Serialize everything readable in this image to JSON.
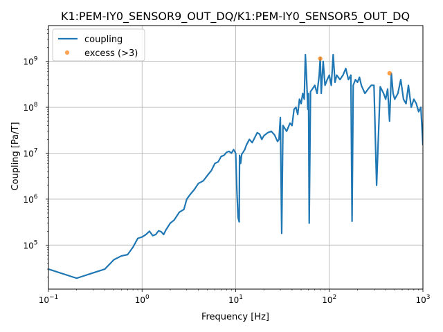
{
  "chart_data": {
    "type": "line",
    "title": "K1:PEM-IY0_SENSOR9_OUT_DQ/K1:PEM-IY0_SENSOR5_OUT_DQ",
    "xlabel": "Frequency [Hz]",
    "ylabel": "Coupling [Pa/T]",
    "xscale": "log",
    "yscale": "log",
    "xlim": [
      0.1,
      1000
    ],
    "ylim": [
      11000,
      6000000000
    ],
    "grid": true,
    "legend_position": "top-left",
    "x_ticks": [
      {
        "base": "10",
        "exp": "−1"
      },
      {
        "base": "10",
        "exp": "0"
      },
      {
        "base": "10",
        "exp": "1"
      },
      {
        "base": "10",
        "exp": "2"
      },
      {
        "base": "10",
        "exp": "3"
      }
    ],
    "y_ticks": [
      {
        "base": "10",
        "exp": "5"
      },
      {
        "base": "10",
        "exp": "6"
      },
      {
        "base": "10",
        "exp": "7"
      },
      {
        "base": "10",
        "exp": "8"
      },
      {
        "base": "10",
        "exp": "9"
      }
    ],
    "series": [
      {
        "name": "coupling",
        "color": "#1f77b4",
        "style": "line",
        "x": [
          0.1,
          0.2,
          0.4,
          0.5,
          0.6,
          0.7,
          0.8,
          0.9,
          1.0,
          1.1,
          1.2,
          1.3,
          1.4,
          1.5,
          1.6,
          1.7,
          1.8,
          2.0,
          2.2,
          2.5,
          2.8,
          3.0,
          3.3,
          3.6,
          4.0,
          4.5,
          5.0,
          5.5,
          6.0,
          6.5,
          7.0,
          7.5,
          8.0,
          8.5,
          9.0,
          9.5,
          10.0,
          10.3,
          10.6,
          10.9,
          11.0,
          11.3,
          11.6,
          12.0,
          12.5,
          13.0,
          14.0,
          15.0,
          16.0,
          17.0,
          18.0,
          19.0,
          20.0,
          22.0,
          24.0,
          26.0,
          28.0,
          29.0,
          30.0,
          31.0,
          32.0,
          35.0,
          38.0,
          40.0,
          42.0,
          44.0,
          46.0,
          48.0,
          50.0,
          52.0,
          54.0,
          55.5,
          57.0,
          59.0,
          60.0,
          61.0,
          63.0,
          66.0,
          70.0,
          74.0,
          78.0,
          80.0,
          82.0,
          86.0,
          90.0,
          95.0,
          100.0,
          105.0,
          110.0,
          115.0,
          120.0,
          130.0,
          140.0,
          150.0,
          160.0,
          170.0,
          175.0,
          180.0,
          190.0,
          200.0,
          210.0,
          220.0,
          240.0,
          260.0,
          280.0,
          300.0,
          320.0,
          350.0,
          380.0,
          400.0,
          420.0,
          440.0,
          460.0,
          480.0,
          500.0,
          540.0,
          580.0,
          620.0,
          660.0,
          700.0,
          750.0,
          800.0,
          850.0,
          900.0,
          950.0,
          1000.0
        ],
        "y": [
          30000,
          19000,
          30000,
          48000,
          58000,
          62000,
          90000,
          140000,
          150000,
          170000,
          200000,
          160000,
          170000,
          205000,
          195000,
          170000,
          215000,
          300000,
          350000,
          520000,
          600000,
          1000000,
          1300000,
          1600000,
          2200000,
          2500000,
          3300000,
          4200000,
          6000000,
          6500000,
          8500000,
          9000000,
          10500000,
          11000000,
          10000000,
          12000000,
          10000000,
          1500000,
          400000,
          320000,
          9000000,
          6000000,
          9500000,
          10500000,
          12000000,
          15000000,
          20000000,
          17000000,
          22000000,
          28000000,
          26000000,
          20000000,
          24000000,
          28000000,
          30000000,
          25000000,
          18000000,
          20000000,
          60000000,
          180000,
          40000000,
          30000000,
          45000000,
          40000000,
          90000000,
          100000000,
          70000000,
          150000000,
          120000000,
          200000000,
          150000000,
          1400000000,
          500000000,
          90000000,
          200000000,
          300000,
          220000000,
          250000000,
          300000000,
          200000000,
          500000000,
          1200000000,
          200000000,
          1000000000,
          300000000,
          400000000,
          500000000,
          300000000,
          1400000000,
          350000000,
          500000000,
          400000000,
          500000000,
          700000000,
          400000000,
          500000000,
          330000,
          300000000,
          400000000,
          350000000,
          450000000,
          300000000,
          200000000,
          250000000,
          300000000,
          300000000,
          2000000,
          280000000,
          200000000,
          150000000,
          250000000,
          50000000,
          550000000,
          200000000,
          150000000,
          200000000,
          400000000,
          150000000,
          120000000,
          300000000,
          100000000,
          150000000,
          120000000,
          80000000,
          100000000,
          15000000
        ]
      },
      {
        "name": "excess (>3)",
        "color": "#ff7f0e",
        "style": "markers",
        "x": [
          80,
          440
        ],
        "y": [
          1150000000,
          550000000
        ]
      }
    ]
  }
}
